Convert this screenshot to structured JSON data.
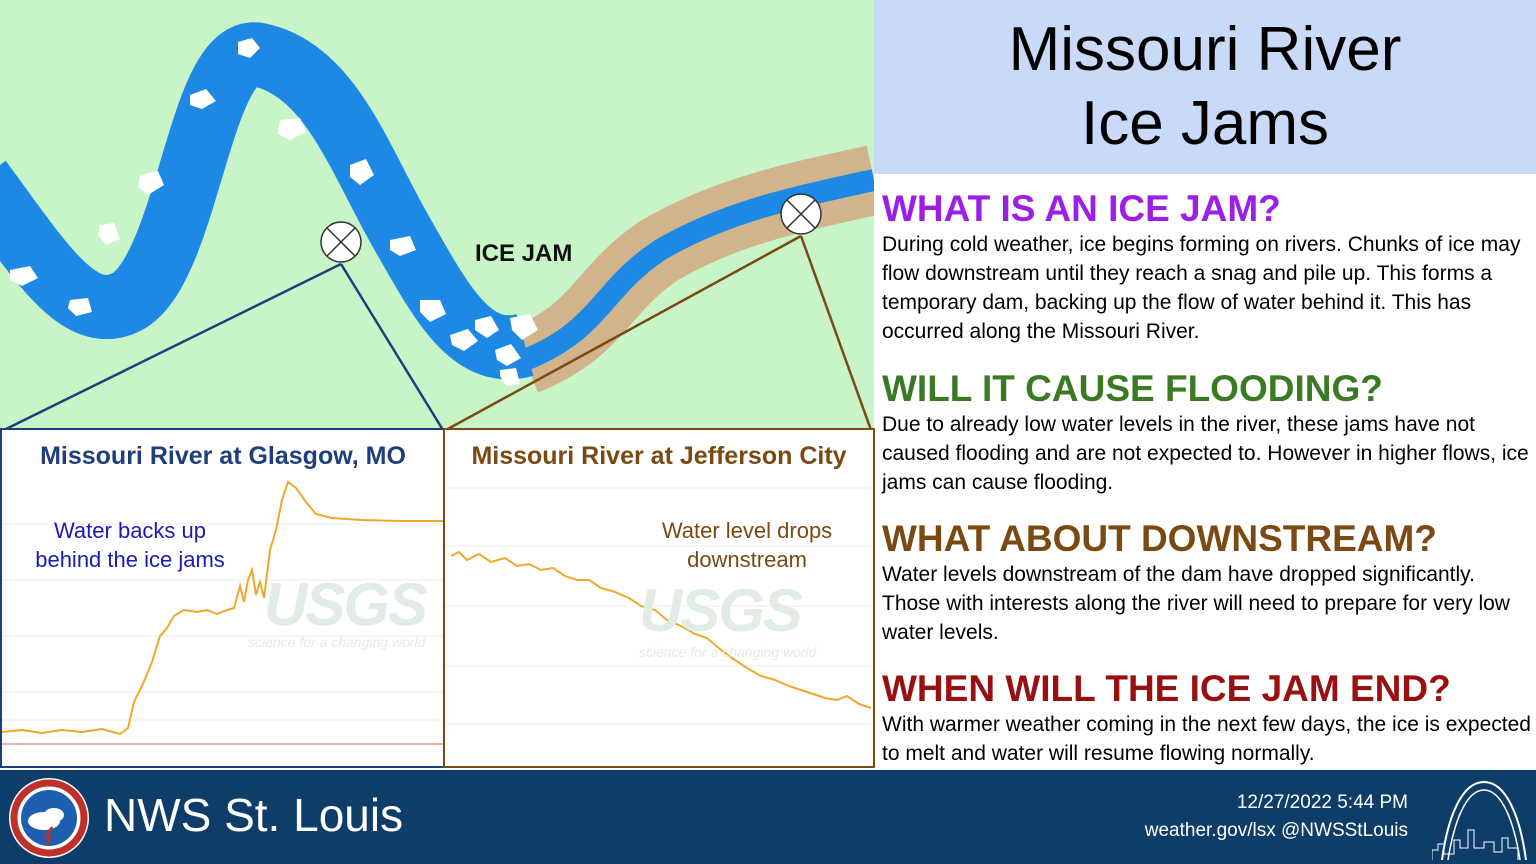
{
  "header": {
    "title_line1": "Missouri River",
    "title_line2": "Ice Jams"
  },
  "map": {
    "label": "ICE JAM"
  },
  "sections": [
    {
      "heading": "WHAT IS AN ICE JAM?",
      "color": "#9b1fe8",
      "body": "During cold weather, ice begins forming on rivers. Chunks of ice may flow downstream until they reach a snag and pile up. This forms a temporary dam, backing up the flow of water behind it. This has occurred along the Missouri River."
    },
    {
      "heading": "WILL IT CAUSE FLOODING?",
      "color": "#3a7a22",
      "body": "Due to already low water levels in the river, these jams have not caused flooding and are not expected to. However in higher flows, ice jams can cause flooding."
    },
    {
      "heading": "WHAT ABOUT DOWNSTREAM?",
      "color": "#7a4a12",
      "body": "Water levels downstream of the dam have dropped significantly. Those with interests along the river will need to prepare for very low water levels."
    },
    {
      "heading": "WHEN WILL THE ICE JAM END?",
      "color": "#9a0f0f",
      "body": "With warmer weather coming in the next few days, the ice is expected to melt and water will resume flowing normally."
    }
  ],
  "panels": {
    "glasgow": {
      "title": "Missouri River at Glasgow, MO",
      "note_line1": "Water backs up",
      "note_line2": "behind the ice jams",
      "color": "#1f3f7a",
      "watermark": "USGS",
      "watermark_sub": "science for a changing world"
    },
    "jefferson": {
      "title": "Missouri River at Jefferson City",
      "note_line1": "Water level drops",
      "note_line2": "downstream",
      "color": "#7a4a12",
      "watermark": "USGS",
      "watermark_sub": "science for a changing world"
    }
  },
  "footer": {
    "org": "NWS St. Louis",
    "timestamp": "12/27/2022 5:44 PM",
    "links": "weather.gov/lsx @NWSStLouis"
  },
  "colors": {
    "river": "#1e88e5",
    "bank": "#d2b48c",
    "ice": "#ffffff",
    "line": "#f0a82c",
    "footer": "#0f3d69"
  }
}
